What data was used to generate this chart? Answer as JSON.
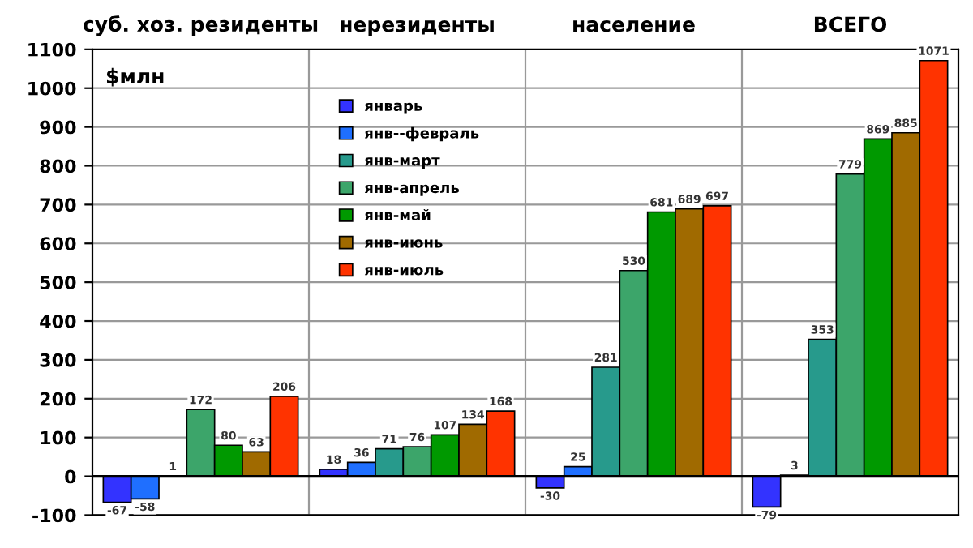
{
  "chart_data": {
    "type": "bar",
    "categories": [
      "суб. хоз. резиденты",
      "нерезиденты",
      "население",
      "ВСЕГО"
    ],
    "ylabel": "$млн",
    "series": [
      {
        "name": "январь",
        "color": "#3333ff",
        "values": [
          -67,
          18,
          -30,
          -79
        ]
      },
      {
        "name": "янв--февраль",
        "color": "#1f6fff",
        "values": [
          -58,
          36,
          25,
          3
        ]
      },
      {
        "name": "янв-март",
        "color": "#279a8c",
        "values": [
          1,
          71,
          281,
          353
        ]
      },
      {
        "name": "янв-апрель",
        "color": "#3ca56a",
        "values": [
          172,
          76,
          530,
          779
        ]
      },
      {
        "name": "янв-май",
        "color": "#009900",
        "values": [
          80,
          107,
          681,
          869
        ]
      },
      {
        "name": "янв-июнь",
        "color": "#a06a00",
        "values": [
          63,
          134,
          689,
          885
        ]
      },
      {
        "name": "янв-июль",
        "color": "#ff3300",
        "values": [
          206,
          168,
          697,
          1071
        ]
      }
    ],
    "ylim": [
      -100,
      1100
    ],
    "yticks": [
      -100,
      0,
      100,
      200,
      300,
      400,
      500,
      600,
      700,
      800,
      900,
      1000,
      1100
    ],
    "grid": true,
    "legend": "top left",
    "data_labels": true
  }
}
